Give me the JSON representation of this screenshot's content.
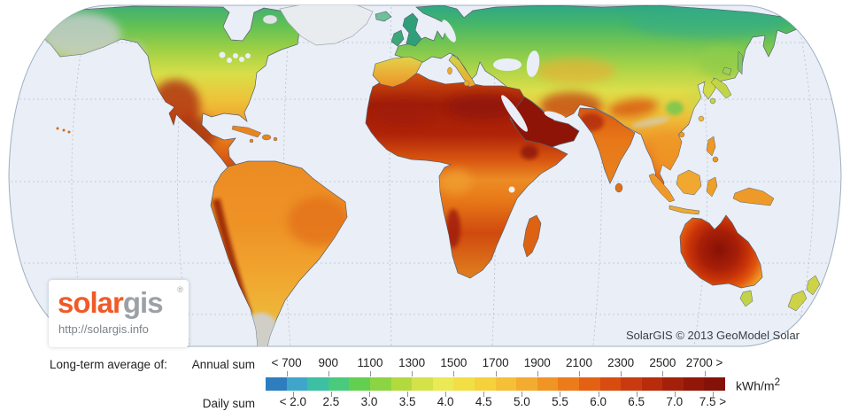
{
  "map": {
    "copyright": "SolarGIS © 2013 GeoModel Solar",
    "ocean_color": "#e9eef7",
    "graticule_color": "#b7c1ce",
    "regions": [
      "north-america",
      "greenland",
      "south-america",
      "europe",
      "africa",
      "madagascar",
      "arabia",
      "india",
      "eurasia",
      "japan",
      "indonesia",
      "new-guinea",
      "australia",
      "new-zealand",
      "united-kingdom",
      "ireland",
      "iceland",
      "iberia",
      "italy",
      "cuba",
      "hispaniola"
    ]
  },
  "logo": {
    "brand_solar": "solar",
    "brand_gis": "gis",
    "registered": "®",
    "url": "http://solargis.info",
    "brand_color": "#f05a28",
    "gis_color": "#9ba1a6"
  },
  "legend": {
    "prefix": "Long-term average of:",
    "annual_label": "Annual sum",
    "daily_label": "Daily sum",
    "unit_base": "kWh/m",
    "unit_sup": "2",
    "annual_ticks": [
      {
        "value": 700,
        "label": "< 700"
      },
      {
        "value": 900,
        "label": "900"
      },
      {
        "value": 1100,
        "label": "1100"
      },
      {
        "value": 1300,
        "label": "1300"
      },
      {
        "value": 1500,
        "label": "1500"
      },
      {
        "value": 1700,
        "label": "1700"
      },
      {
        "value": 1900,
        "label": "1900"
      },
      {
        "value": 2100,
        "label": "2100"
      },
      {
        "value": 2300,
        "label": "2300"
      },
      {
        "value": 2500,
        "label": "2500"
      },
      {
        "value": 2700,
        "label": "2700 >"
      }
    ],
    "daily_ticks": [
      {
        "value": 2.0,
        "label": "< 2.0"
      },
      {
        "value": 2.5,
        "label": "2.5"
      },
      {
        "value": 3.0,
        "label": "3.0"
      },
      {
        "value": 3.5,
        "label": "3.5"
      },
      {
        "value": 4.0,
        "label": "4.0"
      },
      {
        "value": 4.5,
        "label": "4.5"
      },
      {
        "value": 5.0,
        "label": "5.0"
      },
      {
        "value": 5.5,
        "label": "5.5"
      },
      {
        "value": 6.0,
        "label": "6.0"
      },
      {
        "value": 6.5,
        "label": "6.5"
      },
      {
        "value": 7.0,
        "label": "7.0"
      },
      {
        "value": 7.5,
        "label": "7.5 >"
      }
    ],
    "colorbar_colors": [
      "#2d7dbf",
      "#3fa6c9",
      "#3dbfa4",
      "#49ca7c",
      "#63cf51",
      "#8bd443",
      "#b2da3e",
      "#d4e24a",
      "#ebe955",
      "#f2df45",
      "#f5d13c",
      "#f5c038",
      "#f3ac2f",
      "#f09523",
      "#ec7c1b",
      "#e46114",
      "#d84c10",
      "#c93b0e",
      "#b72c0b",
      "#a3210a",
      "#921709",
      "#851208"
    ]
  }
}
